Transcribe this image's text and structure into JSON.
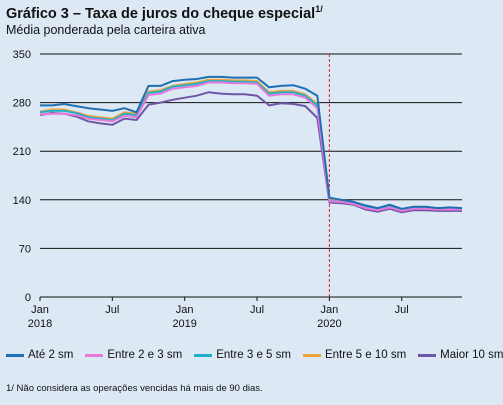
{
  "header": {
    "title": "Gráfico 3 – Taxa de juros do cheque especial",
    "title_note": "1/",
    "subtitle": "Média ponderada pela carteira ativa"
  },
  "footnote": "1/ Não considera as operações vencidas há mais de 90 dias.",
  "chart_data": {
    "type": "line",
    "title": "Gráfico 3 – Taxa de juros do cheque especial",
    "subtitle": "Média ponderada pela carteira ativa",
    "ylim": [
      0,
      350
    ],
    "yticks": [
      0,
      70,
      140,
      210,
      280,
      350
    ],
    "grid": true,
    "legend_position": "bottom",
    "x_tick_labels": [
      {
        "month": 0,
        "line1": "Jan",
        "line2": "2018"
      },
      {
        "month": 6,
        "line1": "Jul",
        "line2": ""
      },
      {
        "month": 12,
        "line1": "Jan",
        "line2": "2019"
      },
      {
        "month": 18,
        "line1": "Jul",
        "line2": ""
      },
      {
        "month": 24,
        "line1": "Jan",
        "line2": "2020"
      },
      {
        "month": 30,
        "line1": "Jul",
        "line2": ""
      }
    ],
    "x_range": [
      0,
      35
    ],
    "vline": {
      "month": 24,
      "color": "#d9262c"
    },
    "series": [
      {
        "name": "Até 2 sm",
        "color": "#1f6fb2",
        "values": [
          276,
          276,
          278,
          275,
          272,
          270,
          268,
          272,
          266,
          304,
          304,
          311,
          313,
          314,
          317,
          317,
          316,
          316,
          316,
          302,
          304,
          305,
          300,
          290,
          143,
          140,
          137,
          132,
          128,
          133,
          127,
          130,
          130,
          128,
          129,
          128
        ]
      },
      {
        "name": "Entre 2 e 3 sm",
        "color": "#e77ad9",
        "values": [
          263,
          264,
          264,
          262,
          257,
          255,
          253,
          261,
          259,
          291,
          293,
          300,
          302,
          304,
          309,
          309,
          308,
          308,
          307,
          290,
          292,
          292,
          287,
          272,
          138,
          137,
          134,
          128,
          125,
          129,
          124,
          127,
          127,
          126,
          126,
          126
        ]
      },
      {
        "name": "Entre 3 e 5 sm",
        "color": "#22b0c8",
        "values": [
          266,
          268,
          268,
          265,
          259,
          257,
          255,
          264,
          262,
          294,
          296,
          303,
          305,
          307,
          311,
          311,
          310,
          310,
          309,
          293,
          295,
          295,
          290,
          276,
          139,
          137,
          135,
          129,
          126,
          130,
          125,
          128,
          128,
          127,
          127,
          127
        ]
      },
      {
        "name": "Entre 5 e 10 sm",
        "color": "#eea33b",
        "values": [
          267,
          270,
          270,
          266,
          261,
          259,
          257,
          266,
          264,
          296,
          298,
          304,
          307,
          309,
          313,
          313,
          312,
          312,
          311,
          295,
          297,
          297,
          292,
          278,
          140,
          138,
          136,
          130,
          127,
          131,
          126,
          129,
          129,
          128,
          128,
          128
        ]
      },
      {
        "name": "Maior 10 sm",
        "color": "#6f56a8",
        "values": [
          262,
          265,
          264,
          260,
          253,
          250,
          248,
          257,
          255,
          277,
          280,
          284,
          287,
          290,
          295,
          293,
          292,
          292,
          290,
          276,
          279,
          278,
          275,
          258,
          136,
          135,
          133,
          126,
          123,
          127,
          122,
          125,
          125,
          124,
          124,
          124
        ]
      }
    ]
  }
}
